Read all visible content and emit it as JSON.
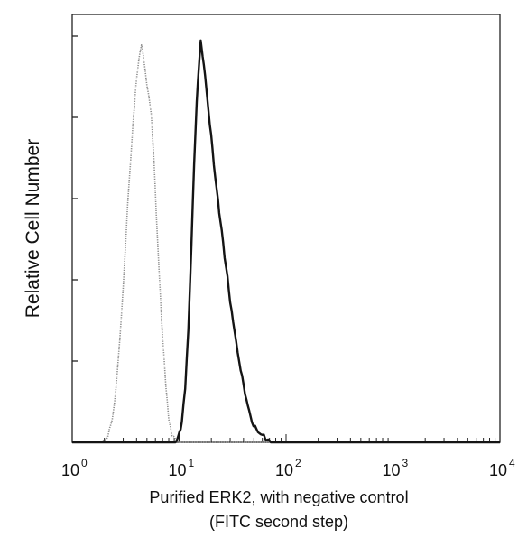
{
  "chart_data": {
    "type": "line",
    "xlabel_line1": "Purified ERK2, with negative control",
    "xlabel_line2": "(FITC second step)",
    "ylabel": "Relative Cell Number",
    "xscale": "log",
    "xlim": [
      1,
      10000
    ],
    "ylim": [
      0,
      100
    ],
    "grid": false,
    "xticks": [
      {
        "value": 1,
        "base": "10",
        "exp": "0"
      },
      {
        "value": 10,
        "base": "10",
        "exp": "1"
      },
      {
        "value": 100,
        "base": "10",
        "exp": "2"
      },
      {
        "value": 1000,
        "base": "10",
        "exp": "3"
      },
      {
        "value": 10000,
        "base": "10",
        "exp": "4"
      }
    ],
    "series": [
      {
        "style": "dotted-light",
        "color": "#8c8c8c",
        "points": [
          [
            1.0,
            0
          ],
          [
            1.9,
            0
          ],
          [
            2.1,
            1
          ],
          [
            2.3,
            4
          ],
          [
            2.5,
            10
          ],
          [
            2.7,
            20
          ],
          [
            2.9,
            32
          ],
          [
            3.1,
            45
          ],
          [
            3.3,
            58
          ],
          [
            3.5,
            69
          ],
          [
            3.7,
            78
          ],
          [
            3.9,
            86
          ],
          [
            4.1,
            92
          ],
          [
            4.3,
            96
          ],
          [
            4.45,
            98
          ],
          [
            4.6,
            96
          ],
          [
            4.8,
            92
          ],
          [
            5.0,
            88
          ],
          [
            5.2,
            86
          ],
          [
            5.5,
            80
          ],
          [
            5.8,
            70
          ],
          [
            6.1,
            57
          ],
          [
            6.5,
            42
          ],
          [
            7.0,
            26
          ],
          [
            7.5,
            14
          ],
          [
            8.0,
            6
          ],
          [
            8.6,
            2
          ],
          [
            9.4,
            0
          ],
          [
            10000,
            0
          ]
        ]
      },
      {
        "style": "solid-dark",
        "color": "#141414",
        "points": [
          [
            1.0,
            0
          ],
          [
            9.0,
            0
          ],
          [
            9.8,
            1
          ],
          [
            10.6,
            5
          ],
          [
            11.4,
            13
          ],
          [
            12.2,
            28
          ],
          [
            13.0,
            48
          ],
          [
            13.8,
            68
          ],
          [
            14.6,
            84
          ],
          [
            15.3,
            93
          ],
          [
            15.9,
            99
          ],
          [
            16.6,
            95
          ],
          [
            17.5,
            90
          ],
          [
            18.8,
            82
          ],
          [
            20.5,
            72
          ],
          [
            22.5,
            62
          ],
          [
            25.0,
            52
          ],
          [
            27.5,
            43
          ],
          [
            30.0,
            35
          ],
          [
            33.0,
            27
          ],
          [
            36.5,
            20
          ],
          [
            40.0,
            14
          ],
          [
            44.0,
            9
          ],
          [
            48.0,
            5
          ],
          [
            53.0,
            3
          ],
          [
            58.0,
            2
          ],
          [
            64.0,
            1
          ],
          [
            72.0,
            0
          ],
          [
            10000,
            0
          ]
        ]
      }
    ]
  }
}
